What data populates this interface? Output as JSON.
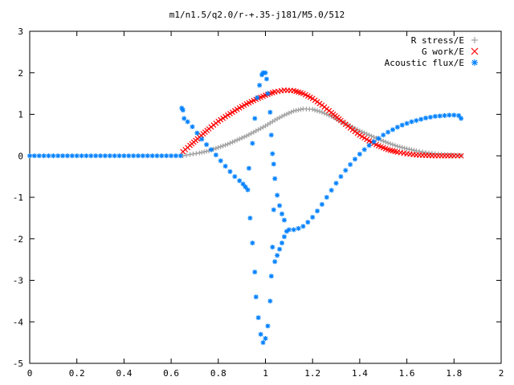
{
  "chart_data": {
    "type": "scatter",
    "title": "m1/n1.5/q2.0/r-+.35-j181/M5.0/512",
    "xlabel": "",
    "ylabel": "",
    "xlim": [
      0,
      2
    ],
    "ylim": [
      -5,
      3
    ],
    "x_ticks": [
      "0",
      "0.2",
      "0.4",
      "0.6",
      "0.8",
      "1",
      "1.2",
      "1.4",
      "1.6",
      "1.8",
      "2"
    ],
    "y_ticks": [
      "3",
      "2",
      "1",
      "0",
      "-1",
      "-2",
      "-3",
      "-4",
      "-5"
    ],
    "grid": false,
    "legend_position": "top-right",
    "series": [
      {
        "name": "R stress/E",
        "marker": "+",
        "color": "#a0a0a0",
        "points": [
          [
            0.65,
            0.0
          ],
          [
            0.68,
            0.03
          ],
          [
            0.72,
            0.07
          ],
          [
            0.76,
            0.12
          ],
          [
            0.8,
            0.2
          ],
          [
            0.84,
            0.28
          ],
          [
            0.88,
            0.38
          ],
          [
            0.92,
            0.48
          ],
          [
            0.96,
            0.6
          ],
          [
            1.0,
            0.72
          ],
          [
            1.04,
            0.86
          ],
          [
            1.08,
            0.98
          ],
          [
            1.12,
            1.08
          ],
          [
            1.16,
            1.13
          ],
          [
            1.2,
            1.12
          ],
          [
            1.24,
            1.05
          ],
          [
            1.28,
            0.95
          ],
          [
            1.32,
            0.83
          ],
          [
            1.36,
            0.72
          ],
          [
            1.4,
            0.6
          ],
          [
            1.44,
            0.5
          ],
          [
            1.48,
            0.4
          ],
          [
            1.52,
            0.31
          ],
          [
            1.56,
            0.23
          ],
          [
            1.6,
            0.17
          ],
          [
            1.64,
            0.12
          ],
          [
            1.68,
            0.08
          ],
          [
            1.72,
            0.05
          ],
          [
            1.76,
            0.03
          ],
          [
            1.8,
            0.02
          ],
          [
            1.83,
            0.01
          ]
        ]
      },
      {
        "name": "G work/E",
        "marker": "x",
        "color": "#ff0000",
        "points": [
          [
            0.65,
            0.1
          ],
          [
            0.68,
            0.25
          ],
          [
            0.72,
            0.45
          ],
          [
            0.76,
            0.65
          ],
          [
            0.8,
            0.83
          ],
          [
            0.84,
            0.98
          ],
          [
            0.88,
            1.12
          ],
          [
            0.92,
            1.25
          ],
          [
            0.96,
            1.36
          ],
          [
            1.0,
            1.46
          ],
          [
            1.04,
            1.54
          ],
          [
            1.08,
            1.58
          ],
          [
            1.12,
            1.57
          ],
          [
            1.16,
            1.5
          ],
          [
            1.2,
            1.38
          ],
          [
            1.24,
            1.22
          ],
          [
            1.28,
            1.04
          ],
          [
            1.32,
            0.85
          ],
          [
            1.36,
            0.67
          ],
          [
            1.4,
            0.5
          ],
          [
            1.44,
            0.36
          ],
          [
            1.48,
            0.24
          ],
          [
            1.52,
            0.15
          ],
          [
            1.56,
            0.09
          ],
          [
            1.6,
            0.05
          ],
          [
            1.64,
            0.02
          ],
          [
            1.68,
            0.01
          ],
          [
            1.72,
            0.0
          ],
          [
            1.76,
            0.0
          ],
          [
            1.8,
            0.0
          ],
          [
            1.83,
            0.0
          ]
        ]
      },
      {
        "name": "Acoustic flux/E",
        "marker": "*",
        "color": "#0080ff",
        "points": [
          [
            0.0,
            0.0
          ],
          [
            0.02,
            0.0
          ],
          [
            0.04,
            0.0
          ],
          [
            0.06,
            0.0
          ],
          [
            0.08,
            0.0
          ],
          [
            0.1,
            0.0
          ],
          [
            0.12,
            0.0
          ],
          [
            0.14,
            0.0
          ],
          [
            0.16,
            0.0
          ],
          [
            0.18,
            0.0
          ],
          [
            0.2,
            0.0
          ],
          [
            0.22,
            0.0
          ],
          [
            0.24,
            0.0
          ],
          [
            0.26,
            0.0
          ],
          [
            0.28,
            0.0
          ],
          [
            0.3,
            0.0
          ],
          [
            0.32,
            0.0
          ],
          [
            0.34,
            0.0
          ],
          [
            0.36,
            0.0
          ],
          [
            0.38,
            0.0
          ],
          [
            0.4,
            0.0
          ],
          [
            0.42,
            0.0
          ],
          [
            0.44,
            0.0
          ],
          [
            0.46,
            0.0
          ],
          [
            0.48,
            0.0
          ],
          [
            0.5,
            0.0
          ],
          [
            0.52,
            0.0
          ],
          [
            0.54,
            0.0
          ],
          [
            0.56,
            0.0
          ],
          [
            0.58,
            0.0
          ],
          [
            0.6,
            0.0
          ],
          [
            0.62,
            0.0
          ],
          [
            0.64,
            0.0
          ],
          [
            0.645,
            1.15
          ],
          [
            0.65,
            1.1
          ],
          [
            0.655,
            0.9
          ],
          [
            0.67,
            0.82
          ],
          [
            0.69,
            0.7
          ],
          [
            0.71,
            0.55
          ],
          [
            0.73,
            0.4
          ],
          [
            0.75,
            0.27
          ],
          [
            0.77,
            0.15
          ],
          [
            0.79,
            0.02
          ],
          [
            0.81,
            -0.12
          ],
          [
            0.83,
            -0.25
          ],
          [
            0.85,
            -0.38
          ],
          [
            0.87,
            -0.5
          ],
          [
            0.89,
            -0.6
          ],
          [
            0.905,
            -0.68
          ],
          [
            0.915,
            -0.75
          ],
          [
            0.925,
            -0.82
          ],
          [
            0.935,
            -1.5
          ],
          [
            0.945,
            -2.1
          ],
          [
            0.955,
            -2.8
          ],
          [
            0.96,
            -3.4
          ],
          [
            0.97,
            -3.9
          ],
          [
            0.98,
            -4.3
          ],
          [
            0.99,
            -4.5
          ],
          [
            1.0,
            -4.4
          ],
          [
            1.01,
            -4.1
          ],
          [
            1.02,
            -3.5
          ],
          [
            1.025,
            -2.9
          ],
          [
            1.03,
            -2.2
          ],
          [
            1.035,
            -1.3
          ],
          [
            1.04,
            -0.55
          ],
          [
            0.93,
            -0.3
          ],
          [
            0.945,
            0.3
          ],
          [
            0.955,
            0.9
          ],
          [
            0.965,
            1.4
          ],
          [
            0.975,
            1.7
          ],
          [
            0.985,
            1.95
          ],
          [
            0.99,
            2.0
          ],
          [
            1.0,
            2.0
          ],
          [
            1.005,
            1.85
          ],
          [
            1.01,
            1.5
          ],
          [
            1.02,
            1.05
          ],
          [
            1.025,
            0.5
          ],
          [
            1.03,
            0.05
          ],
          [
            1.035,
            -0.2
          ],
          [
            1.05,
            -0.95
          ],
          [
            1.06,
            -1.2
          ],
          [
            1.07,
            -1.4
          ],
          [
            1.08,
            -1.55
          ],
          [
            1.04,
            -2.55
          ],
          [
            1.05,
            -2.4
          ],
          [
            1.06,
            -2.25
          ],
          [
            1.07,
            -2.1
          ],
          [
            1.08,
            -1.95
          ],
          [
            1.09,
            -1.82
          ],
          [
            1.1,
            -1.78
          ],
          [
            1.12,
            -1.78
          ],
          [
            1.14,
            -1.75
          ],
          [
            1.16,
            -1.7
          ],
          [
            1.18,
            -1.6
          ],
          [
            1.2,
            -1.48
          ],
          [
            1.22,
            -1.33
          ],
          [
            1.24,
            -1.17
          ],
          [
            1.26,
            -1.0
          ],
          [
            1.28,
            -0.83
          ],
          [
            1.3,
            -0.66
          ],
          [
            1.32,
            -0.5
          ],
          [
            1.34,
            -0.35
          ],
          [
            1.36,
            -0.21
          ],
          [
            1.38,
            -0.08
          ],
          [
            1.4,
            0.04
          ],
          [
            1.42,
            0.15
          ],
          [
            1.44,
            0.25
          ],
          [
            1.46,
            0.34
          ],
          [
            1.48,
            0.42
          ],
          [
            1.5,
            0.5
          ],
          [
            1.52,
            0.57
          ],
          [
            1.54,
            0.63
          ],
          [
            1.56,
            0.69
          ],
          [
            1.58,
            0.74
          ],
          [
            1.6,
            0.78
          ],
          [
            1.62,
            0.82
          ],
          [
            1.64,
            0.85
          ],
          [
            1.66,
            0.88
          ],
          [
            1.68,
            0.91
          ],
          [
            1.7,
            0.93
          ],
          [
            1.72,
            0.95
          ],
          [
            1.74,
            0.96
          ],
          [
            1.76,
            0.97
          ],
          [
            1.78,
            0.98
          ],
          [
            1.8,
            0.98
          ],
          [
            1.82,
            0.97
          ],
          [
            1.83,
            0.9
          ]
        ]
      }
    ]
  }
}
